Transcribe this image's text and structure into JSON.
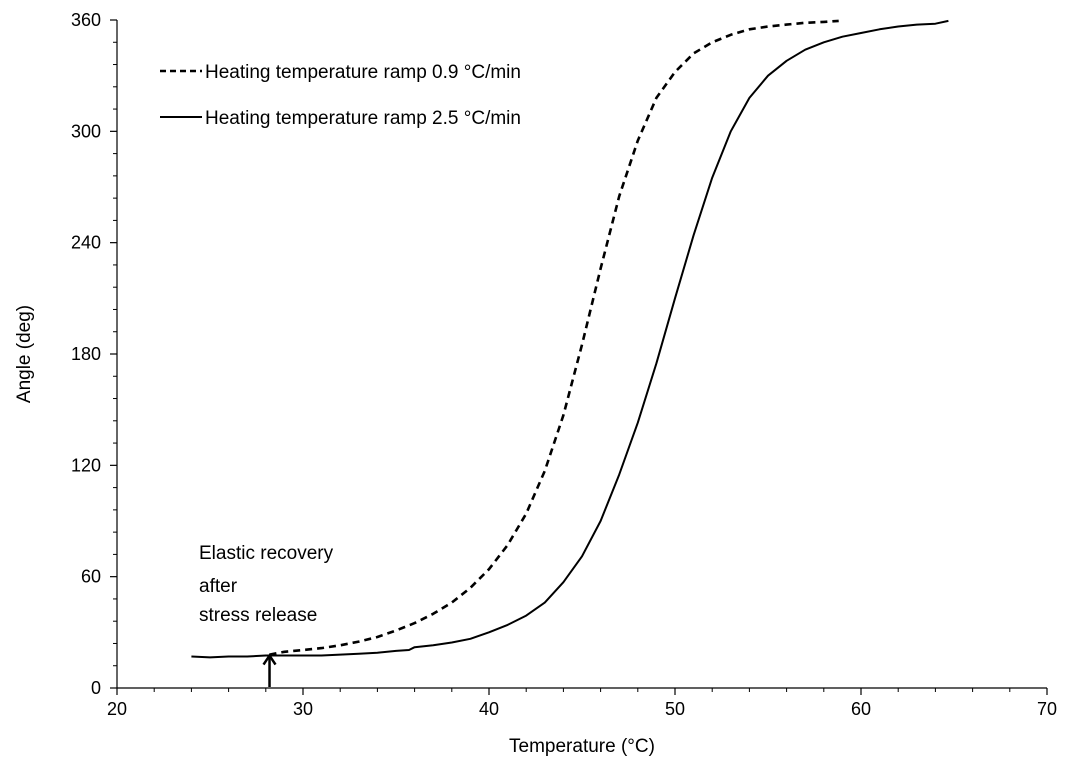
{
  "chart_data": {
    "type": "line",
    "xlabel": "Temperature (°C)",
    "ylabel": "Angle (deg)",
    "xlim": [
      20,
      70
    ],
    "ylim": [
      0,
      360
    ],
    "xticks": [
      20,
      30,
      40,
      50,
      60,
      70
    ],
    "yticks": [
      0,
      60,
      120,
      180,
      240,
      300,
      360
    ],
    "grid": false,
    "legend_position": "top-left",
    "series": [
      {
        "name": "Heating temperature ramp 0.9 °C/min",
        "style": "dashed",
        "color": "#000000",
        "points": [
          [
            28.2,
            18
          ],
          [
            29,
            19.5
          ],
          [
            30,
            20.5
          ],
          [
            31,
            21.5
          ],
          [
            32,
            23
          ],
          [
            33,
            25
          ],
          [
            34,
            27.5
          ],
          [
            35,
            31
          ],
          [
            36,
            35
          ],
          [
            37,
            40
          ],
          [
            38,
            46
          ],
          [
            39,
            54
          ],
          [
            40,
            64
          ],
          [
            41,
            77
          ],
          [
            42,
            94
          ],
          [
            43,
            117
          ],
          [
            44,
            147
          ],
          [
            45,
            185
          ],
          [
            46,
            226
          ],
          [
            47,
            265
          ],
          [
            48,
            295
          ],
          [
            49,
            318
          ],
          [
            50,
            332
          ],
          [
            51,
            342
          ],
          [
            52,
            348
          ],
          [
            53,
            352
          ],
          [
            54,
            355
          ],
          [
            55,
            356.5
          ],
          [
            56,
            357.5
          ],
          [
            57,
            358.5
          ],
          [
            58,
            359
          ],
          [
            58.8,
            359.5
          ]
        ]
      },
      {
        "name": "Heating temperature ramp 2.5 °C/min",
        "style": "solid",
        "color": "#000000",
        "points": [
          [
            24,
            17
          ],
          [
            25,
            16.5
          ],
          [
            26,
            17
          ],
          [
            27,
            17
          ],
          [
            28,
            17.5
          ],
          [
            29,
            17.5
          ],
          [
            30,
            17.5
          ],
          [
            31,
            17.5
          ],
          [
            32,
            18
          ],
          [
            33,
            18.5
          ],
          [
            34,
            19
          ],
          [
            35,
            20
          ],
          [
            35.7,
            20.5
          ],
          [
            36,
            22
          ],
          [
            37,
            23
          ],
          [
            38,
            24.5
          ],
          [
            39,
            26.5
          ],
          [
            40,
            30
          ],
          [
            41,
            34
          ],
          [
            42,
            39
          ],
          [
            43,
            46
          ],
          [
            44,
            57
          ],
          [
            45,
            71
          ],
          [
            46,
            90
          ],
          [
            47,
            115
          ],
          [
            48,
            143
          ],
          [
            49,
            175
          ],
          [
            50,
            210
          ],
          [
            51,
            244
          ],
          [
            52,
            275
          ],
          [
            53,
            300
          ],
          [
            54,
            318
          ],
          [
            55,
            330
          ],
          [
            56,
            338
          ],
          [
            57,
            344
          ],
          [
            58,
            348
          ],
          [
            59,
            351
          ],
          [
            60,
            353
          ],
          [
            61,
            355
          ],
          [
            62,
            356.5
          ],
          [
            63,
            357.5
          ],
          [
            64,
            358
          ],
          [
            64.7,
            359.5
          ]
        ]
      }
    ],
    "annotations": [
      {
        "lines": [
          "Elastic recovery",
          "after",
          "stress release"
        ],
        "arrow_to": [
          28.2,
          18
        ]
      }
    ]
  }
}
